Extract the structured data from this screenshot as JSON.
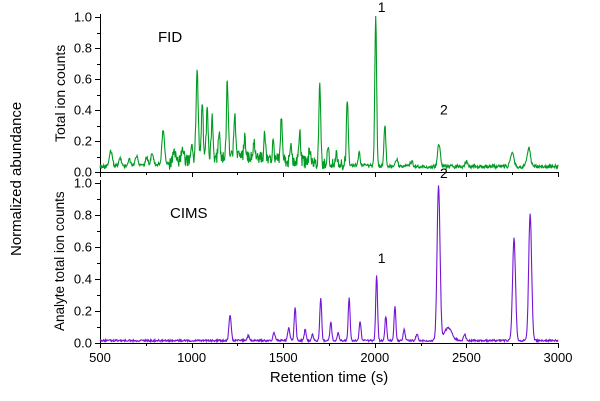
{
  "figure": {
    "outer_ylabel": "Normalized abundance",
    "xlabel": "Retention time (s)",
    "xlim": [
      500,
      3000
    ],
    "x_ticks": [
      500,
      1000,
      1500,
      2000,
      2500,
      3000
    ],
    "x_minor_step": 250,
    "y_ticks": [
      0.0,
      0.2,
      0.4,
      0.6,
      0.8,
      1.0
    ],
    "y_minor_step": 0.2,
    "axis_color": "#000000",
    "background": "#ffffff"
  },
  "chart_data": [
    {
      "id": "fid",
      "type": "line",
      "title": "FID",
      "ylabel": "Total ion counts",
      "color": "#009b22",
      "ylim": [
        0,
        1.02
      ],
      "x_tick_labels": false,
      "baseline": 0.035,
      "noise": 0.012,
      "noise_regions": [
        {
          "from": 880,
          "to": 1850,
          "amp": 0.03
        }
      ],
      "annotations": [
        {
          "label": "1",
          "x": 2010,
          "y": 1.0
        },
        {
          "label": "2",
          "x": 2350,
          "y": 0.34
        }
      ],
      "peaks": [
        [
          560,
          0.1,
          8
        ],
        [
          610,
          0.05,
          8
        ],
        [
          660,
          0.04,
          8
        ],
        [
          700,
          0.07,
          8
        ],
        [
          755,
          0.05,
          7
        ],
        [
          785,
          0.08,
          7
        ],
        [
          845,
          0.22,
          7
        ],
        [
          905,
          0.09,
          7
        ],
        [
          950,
          0.1,
          6
        ],
        [
          1000,
          0.12,
          6
        ],
        [
          1030,
          0.55,
          6
        ],
        [
          1058,
          0.36,
          5
        ],
        [
          1085,
          0.32,
          5
        ],
        [
          1112,
          0.25,
          5
        ],
        [
          1150,
          0.14,
          5
        ],
        [
          1195,
          0.5,
          5
        ],
        [
          1235,
          0.28,
          5
        ],
        [
          1290,
          0.12,
          5
        ],
        [
          1340,
          0.1,
          5
        ],
        [
          1400,
          0.16,
          5
        ],
        [
          1445,
          0.12,
          5
        ],
        [
          1490,
          0.26,
          5
        ],
        [
          1540,
          0.09,
          5
        ],
        [
          1590,
          0.2,
          5
        ],
        [
          1645,
          0.1,
          5
        ],
        [
          1700,
          0.5,
          5
        ],
        [
          1745,
          0.1,
          5
        ],
        [
          1790,
          0.08,
          5
        ],
        [
          1850,
          0.42,
          5
        ],
        [
          1915,
          0.08,
          5
        ],
        [
          2005,
          0.96,
          5
        ],
        [
          2055,
          0.27,
          5
        ],
        [
          2120,
          0.05,
          6
        ],
        [
          2200,
          0.03,
          8
        ],
        [
          2350,
          0.15,
          7
        ],
        [
          2500,
          0.03,
          8
        ],
        [
          2750,
          0.09,
          9
        ],
        [
          2840,
          0.12,
          9
        ],
        [
          1150,
          0.05,
          200
        ],
        [
          1500,
          0.03,
          250
        ]
      ]
    },
    {
      "id": "cims",
      "type": "line",
      "title": "CIMS",
      "ylabel": "Analyte total ion counts",
      "color": "#7615d6",
      "ylim": [
        0,
        1.02
      ],
      "x_tick_labels": true,
      "baseline": 0.015,
      "noise": 0.006,
      "noise_regions": [],
      "annotations": [
        {
          "label": "1",
          "x": 2010,
          "y": 0.47
        },
        {
          "label": "2",
          "x": 2350,
          "y": 1.0
        }
      ],
      "peaks": [
        [
          1210,
          0.16,
          6
        ],
        [
          1310,
          0.03,
          6
        ],
        [
          1450,
          0.05,
          6
        ],
        [
          1530,
          0.08,
          6
        ],
        [
          1565,
          0.21,
          5
        ],
        [
          1620,
          0.07,
          5
        ],
        [
          1660,
          0.04,
          5
        ],
        [
          1705,
          0.27,
          5
        ],
        [
          1760,
          0.12,
          5
        ],
        [
          1800,
          0.05,
          5
        ],
        [
          1860,
          0.27,
          5
        ],
        [
          1920,
          0.12,
          5
        ],
        [
          2010,
          0.41,
          5
        ],
        [
          2060,
          0.15,
          5
        ],
        [
          2110,
          0.21,
          5
        ],
        [
          2160,
          0.07,
          5
        ],
        [
          2230,
          0.04,
          6
        ],
        [
          2348,
          0.97,
          8
        ],
        [
          2400,
          0.08,
          20
        ],
        [
          2490,
          0.04,
          6
        ],
        [
          2760,
          0.64,
          8
        ],
        [
          2848,
          0.79,
          8
        ]
      ]
    }
  ]
}
